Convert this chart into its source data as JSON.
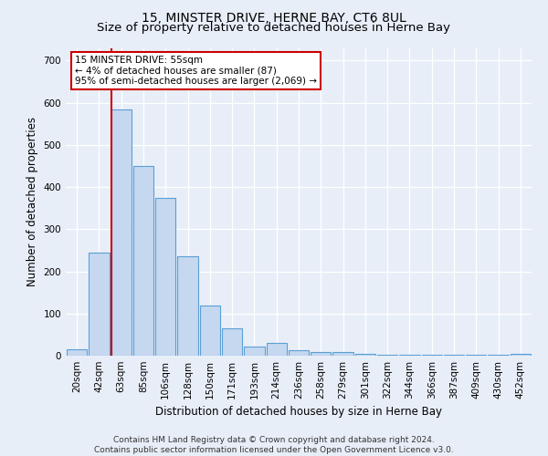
{
  "title": "15, MINSTER DRIVE, HERNE BAY, CT6 8UL",
  "subtitle": "Size of property relative to detached houses in Herne Bay",
  "xlabel": "Distribution of detached houses by size in Herne Bay",
  "ylabel": "Number of detached properties",
  "categories": [
    "20sqm",
    "42sqm",
    "63sqm",
    "85sqm",
    "106sqm",
    "128sqm",
    "150sqm",
    "171sqm",
    "193sqm",
    "214sqm",
    "236sqm",
    "258sqm",
    "279sqm",
    "301sqm",
    "322sqm",
    "344sqm",
    "366sqm",
    "387sqm",
    "409sqm",
    "430sqm",
    "452sqm"
  ],
  "bar_heights": [
    15,
    245,
    585,
    450,
    375,
    235,
    120,
    65,
    22,
    30,
    13,
    8,
    8,
    5,
    3,
    3,
    2,
    2,
    2,
    2,
    5
  ],
  "bar_color": "#c5d8f0",
  "bar_edge_color": "#5a9fd4",
  "annotation_text": "15 MINSTER DRIVE: 55sqm\n← 4% of detached houses are smaller (87)\n95% of semi-detached houses are larger (2,069) →",
  "annotation_box_color": "#ffffff",
  "annotation_box_edge": "#cc0000",
  "vline_color": "#cc0000",
  "ylim": [
    0,
    730
  ],
  "yticks": [
    0,
    100,
    200,
    300,
    400,
    500,
    600,
    700
  ],
  "footer_text": "Contains HM Land Registry data © Crown copyright and database right 2024.\nContains public sector information licensed under the Open Government Licence v3.0.",
  "bg_color": "#e8eef8",
  "plot_bg_color": "#e8eef8",
  "title_fontsize": 10,
  "tick_fontsize": 7.5,
  "ylabel_fontsize": 8.5,
  "xlabel_fontsize": 8.5,
  "footer_fontsize": 6.5
}
